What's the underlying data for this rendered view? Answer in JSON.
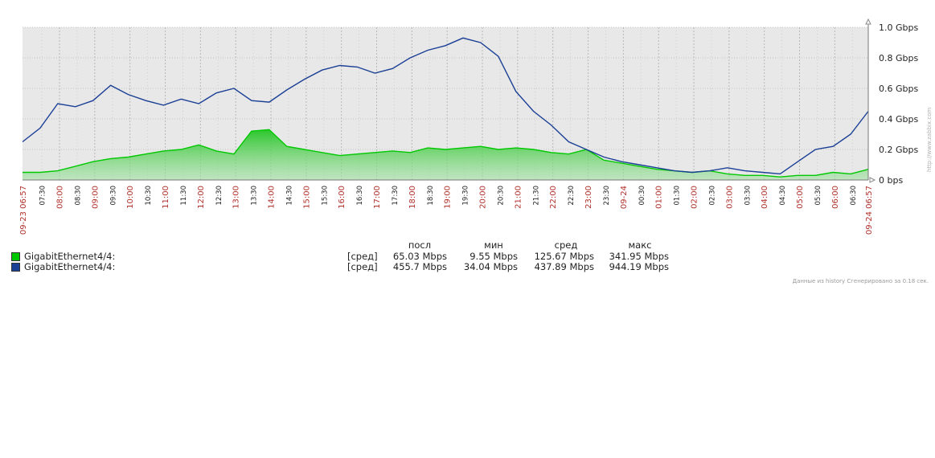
{
  "chart_data": {
    "type": "area",
    "xlabel": "",
    "ylabel": "",
    "ylim": [
      0,
      1.0
    ],
    "ytick_labels": [
      "0 bps",
      "0.2 Gbps",
      "0.4 Gbps",
      "0.6 Gbps",
      "0.8 Gbps",
      "1.0 Gbps"
    ],
    "ytick_values": [
      0,
      0.2,
      0.4,
      0.6,
      0.8,
      1.0
    ],
    "x_start_label": "09-23 06:57",
    "x_end_label": "09-24 06:57",
    "xtick_labels": [
      "07:30",
      "08:00",
      "08:30",
      "09:00",
      "09:30",
      "10:00",
      "10:30",
      "11:00",
      "11:30",
      "12:00",
      "12:30",
      "13:00",
      "13:30",
      "14:00",
      "14:30",
      "15:00",
      "15:30",
      "16:00",
      "16:30",
      "17:00",
      "17:30",
      "18:00",
      "18:30",
      "19:00",
      "19:30",
      "20:00",
      "20:30",
      "21:00",
      "21:30",
      "22:00",
      "22:30",
      "23:00",
      "23:30",
      "09-24",
      "00:30",
      "01:00",
      "01:30",
      "02:00",
      "02:30",
      "03:00",
      "03:30",
      "04:00",
      "04:30",
      "05:00",
      "05:30",
      "06:00",
      "06:30"
    ],
    "xtick_hours": [
      0.55,
      1.05,
      1.55,
      2.05,
      2.55,
      3.05,
      3.55,
      4.05,
      4.55,
      5.05,
      5.55,
      6.05,
      6.55,
      7.05,
      7.55,
      8.05,
      8.55,
      9.05,
      9.55,
      10.05,
      10.55,
      11.05,
      11.55,
      12.05,
      12.55,
      13.05,
      13.55,
      14.05,
      14.55,
      15.05,
      15.55,
      16.05,
      16.55,
      17.05,
      17.55,
      18.05,
      18.55,
      19.05,
      19.55,
      20.05,
      20.55,
      21.05,
      21.55,
      22.05,
      22.55,
      23.05,
      23.55
    ],
    "x_hours_since_start": [
      0,
      0.5,
      1,
      1.5,
      2,
      2.5,
      3,
      3.5,
      4,
      4.5,
      5,
      5.5,
      6,
      6.5,
      7,
      7.5,
      8,
      8.5,
      9,
      9.5,
      10,
      10.5,
      11,
      11.5,
      12,
      12.5,
      13,
      13.5,
      14,
      14.5,
      15,
      15.5,
      16,
      16.5,
      17,
      17.5,
      18,
      18.5,
      19,
      19.5,
      20,
      20.5,
      21,
      21.5,
      22,
      22.5,
      23,
      23.5,
      24
    ],
    "series": [
      {
        "name": "GigabitEthernet4/4:",
        "color": "#00c800",
        "values": [
          0.05,
          0.05,
          0.06,
          0.09,
          0.12,
          0.14,
          0.15,
          0.17,
          0.19,
          0.2,
          0.23,
          0.19,
          0.17,
          0.32,
          0.33,
          0.22,
          0.2,
          0.18,
          0.16,
          0.17,
          0.18,
          0.19,
          0.18,
          0.21,
          0.2,
          0.21,
          0.22,
          0.2,
          0.21,
          0.2,
          0.18,
          0.17,
          0.2,
          0.13,
          0.11,
          0.09,
          0.07,
          0.06,
          0.05,
          0.06,
          0.04,
          0.03,
          0.03,
          0.02,
          0.03,
          0.03,
          0.05,
          0.04,
          0.07
        ]
      },
      {
        "name": "GigabitEthernet4/4:",
        "color": "#1a3f95",
        "values": [
          0.25,
          0.34,
          0.5,
          0.48,
          0.52,
          0.62,
          0.56,
          0.52,
          0.49,
          0.53,
          0.5,
          0.57,
          0.6,
          0.52,
          0.51,
          0.59,
          0.66,
          0.72,
          0.75,
          0.74,
          0.7,
          0.73,
          0.8,
          0.85,
          0.88,
          0.93,
          0.9,
          0.81,
          0.58,
          0.45,
          0.36,
          0.25,
          0.2,
          0.15,
          0.12,
          0.1,
          0.08,
          0.06,
          0.05,
          0.06,
          0.08,
          0.06,
          0.05,
          0.04,
          0.12,
          0.2,
          0.22,
          0.3,
          0.45
        ]
      }
    ],
    "grid": true,
    "legend_position": "bottom-left"
  },
  "legend": {
    "headers": [
      "посл",
      "мин",
      "сред",
      "макс"
    ],
    "rows": [
      {
        "name": "GigabitEthernet4/4:",
        "color": "#00c800",
        "agg": "[сред]",
        "last": "65.03 Mbps",
        "min": "9.55 Mbps",
        "avg": "125.67 Mbps",
        "max": "341.95 Mbps"
      },
      {
        "name": "GigabitEthernet4/4:",
        "color": "#1a3f95",
        "agg": "[сред]",
        "last": "455.7 Mbps",
        "min": "34.04 Mbps",
        "avg": "437.89 Mbps",
        "max": "944.19 Mbps"
      }
    ]
  },
  "footer": "Данные из history  Сгенерировано за 0.18 сек.",
  "credit": "http://www.zabbix.com"
}
